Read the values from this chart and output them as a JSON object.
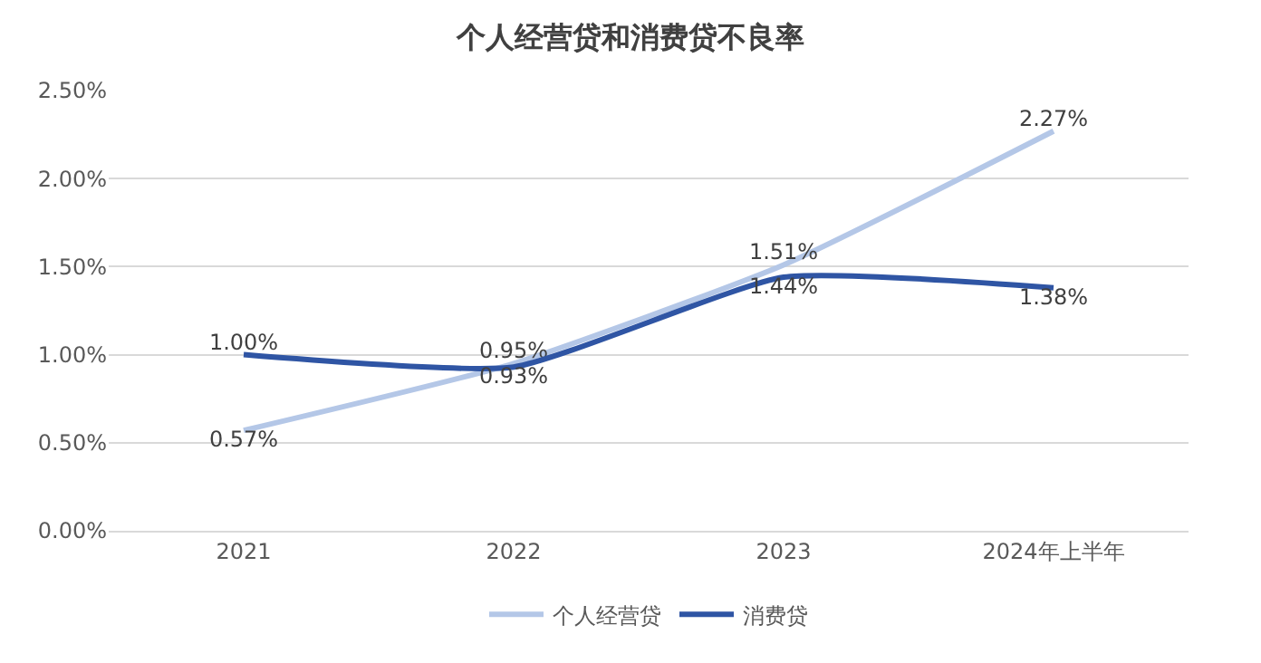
{
  "chart_data": {
    "type": "line",
    "title": "个人经营贷和消费贷不良率",
    "categories": [
      "2021",
      "2022",
      "2023",
      "2024年上半年"
    ],
    "series": [
      {
        "name": "个人经营贷",
        "color": "#b4c7e7",
        "values": [
          0.57,
          0.95,
          1.51,
          2.27
        ],
        "value_labels": [
          "0.57%",
          "0.95%",
          "1.51%",
          "2.27%"
        ]
      },
      {
        "name": "消费贷",
        "color": "#2f55a4",
        "values": [
          1.0,
          0.93,
          1.44,
          1.38
        ],
        "value_labels": [
          "1.00%",
          "0.93%",
          "1.44%",
          "1.38%"
        ]
      }
    ],
    "ylim": [
      0,
      2.5
    ],
    "yticks": [
      {
        "value": 0,
        "label": "0.00%"
      },
      {
        "value": 0.5,
        "label": "0.50%"
      },
      {
        "value": 1.0,
        "label": "1.00%"
      },
      {
        "value": 1.5,
        "label": "1.50%"
      },
      {
        "value": 2.0,
        "label": "2.00%"
      },
      {
        "value": 2.5,
        "label": "2.50%"
      }
    ],
    "grid": "y",
    "legend": "bottom",
    "marker": "none",
    "line_style": "solid"
  }
}
